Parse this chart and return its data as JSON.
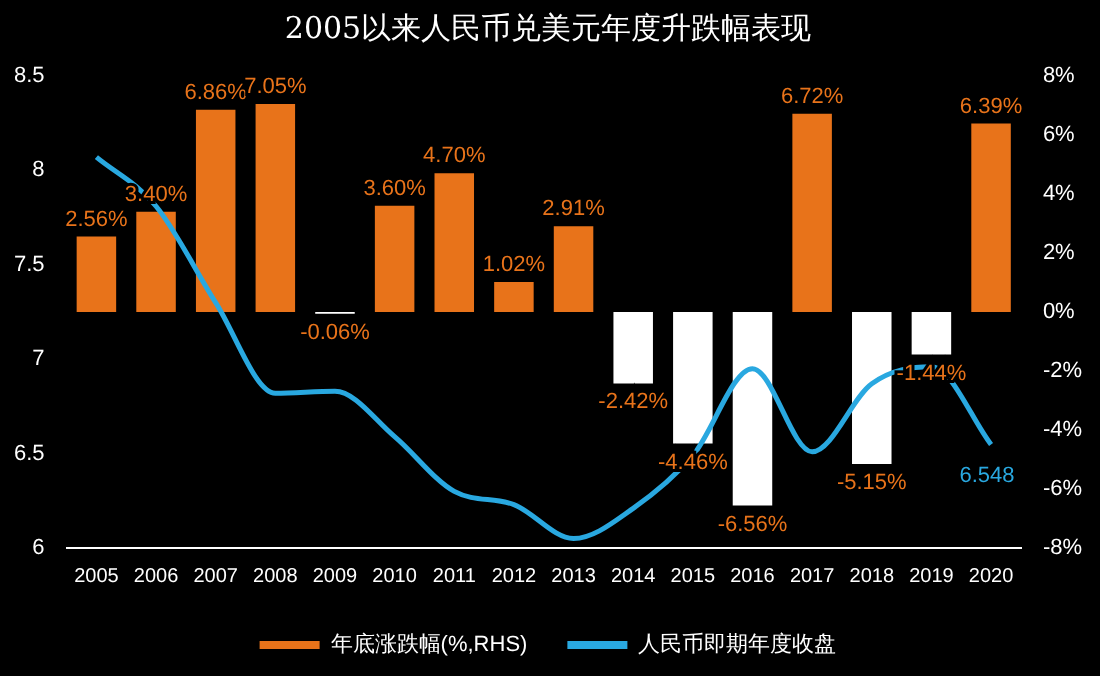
{
  "chart_data": {
    "type": "bar",
    "title": "2005以来人民币兑美元年度升跌幅表现",
    "categories": [
      "2005",
      "2006",
      "2007",
      "2008",
      "2009",
      "2010",
      "2011",
      "2012",
      "2013",
      "2014",
      "2015",
      "2016",
      "2017",
      "2018",
      "2019",
      "2020"
    ],
    "series": [
      {
        "name": "年底涨跌幅(%,RHS)",
        "axis": "y2",
        "color": "#e8731a",
        "colors": [
          "#e8731a",
          "#e8731a",
          "#e8731a",
          "#e8731a",
          "#ffffff",
          "#e8731a",
          "#e8731a",
          "#e8731a",
          "#e8731a",
          "#ffffff",
          "#ffffff",
          "#ffffff",
          "#e8731a",
          "#ffffff",
          "#ffffff",
          "#e8731a"
        ],
        "values": [
          2.56,
          3.4,
          6.86,
          7.05,
          -0.06,
          3.6,
          4.7,
          1.02,
          2.91,
          -2.42,
          -4.46,
          -6.56,
          6.72,
          -5.15,
          -1.44,
          6.39
        ],
        "value_labels": [
          "2.56%",
          "3.40%",
          "6.86%",
          "7.05%",
          "-0.06%",
          "3.60%",
          "4.70%",
          "1.02%",
          "2.91%",
          "-2.42%",
          "-4.46%",
          "-6.56%",
          "6.72%",
          "-5.15%",
          "-1.44%",
          "6.39%"
        ]
      },
      {
        "name": "人民币即期年度收盘",
        "type": "line",
        "axis": "y",
        "color": "#29a8e0",
        "values": [
          8.07,
          7.81,
          7.3,
          6.82,
          6.83,
          6.59,
          6.3,
          6.23,
          6.05,
          6.21,
          6.49,
          6.95,
          6.51,
          6.87,
          6.96,
          6.548
        ]
      }
    ],
    "ylim": [
      6,
      8.5
    ],
    "yticks": [
      6,
      6.5,
      7,
      7.5,
      8,
      8.5
    ],
    "y2lim": [
      -8,
      8
    ],
    "y2ticks": [
      {
        "value": -8,
        "label": "-8%"
      },
      {
        "value": -6,
        "label": "-6%"
      },
      {
        "value": -4,
        "label": "-4%"
      },
      {
        "value": -2,
        "label": "-2%"
      },
      {
        "value": 0,
        "label": "0%"
      },
      {
        "value": 2,
        "label": "2%"
      },
      {
        "value": 4,
        "label": "4%"
      },
      {
        "value": 6,
        "label": "6%"
      },
      {
        "value": 8,
        "label": "8%"
      }
    ],
    "annotations": [
      {
        "text": "6.548",
        "x": "2020",
        "y": 6.548
      }
    ],
    "legend": "bottom",
    "grid": false,
    "marker": "none"
  }
}
